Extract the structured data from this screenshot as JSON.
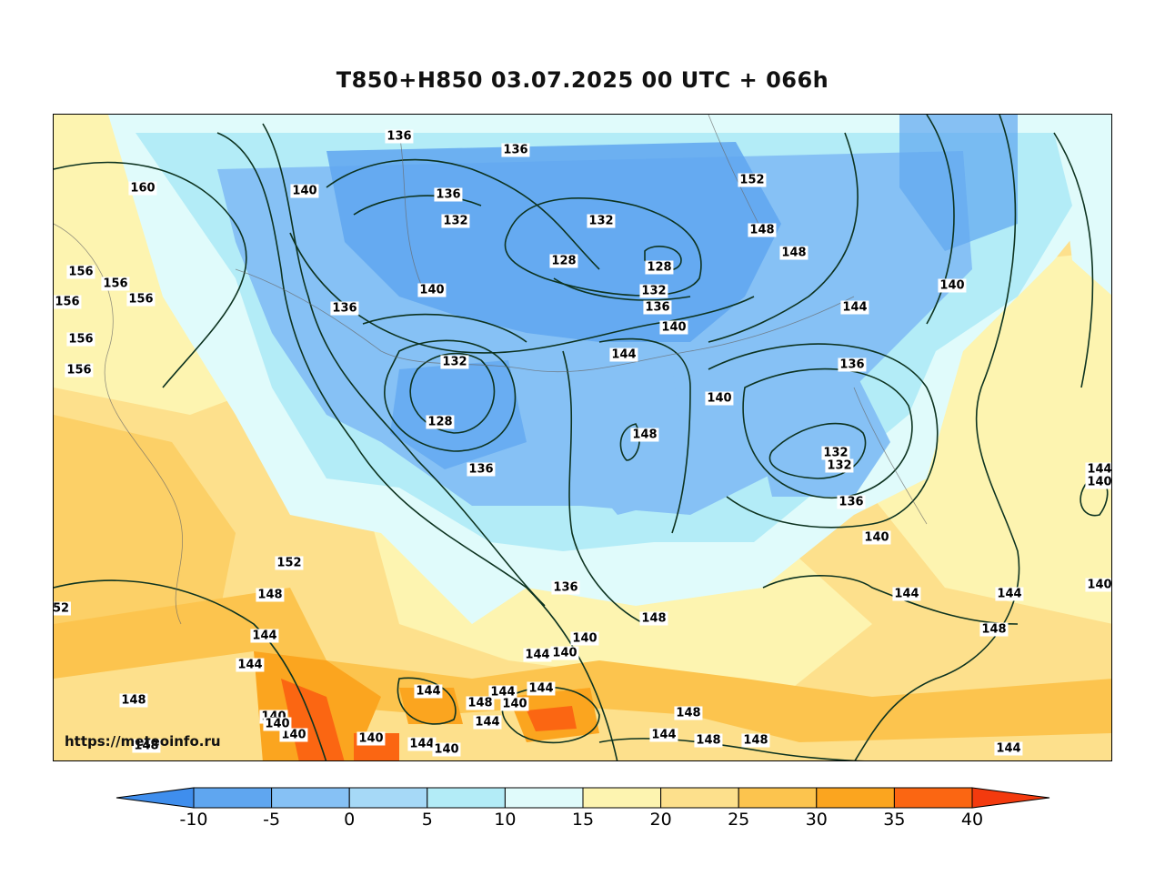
{
  "title": "T850+H850 03.07.2025 00 UTC + 066h",
  "source": "https://meteoinfo.ru",
  "colorbar": {
    "ticks": [
      "-10",
      "-5",
      "0",
      "5",
      "10",
      "15",
      "20",
      "25",
      "30",
      "35",
      "40"
    ],
    "colors": [
      "#3f8eed",
      "#5fa6f0",
      "#86c1f5",
      "#b3ecf7",
      "#e0fbfb",
      "#fdf4b0",
      "#fde08c",
      "#fcc44e",
      "#fba51f",
      "#fb6612",
      "#f33a0e"
    ]
  },
  "palette": {
    "cold_deep": "#5fa6f0",
    "cold": "#86c1f5",
    "cool": "#b3ecf7",
    "mild": "#e0fbfb",
    "warm": "#fdf4b0",
    "warmer": "#fde08c",
    "hot": "#fcc44e",
    "hotter": "#fba51f",
    "hottest": "#fb6612",
    "contour": "#0d3320"
  },
  "contour_labels": [
    "136",
    "136",
    "160",
    "140",
    "136",
    "132",
    "128",
    "128",
    "132",
    "132",
    "136",
    "140",
    "152",
    "148",
    "148",
    "156",
    "156",
    "156",
    "156",
    "156",
    "156",
    "140",
    "136",
    "132",
    "128",
    "136",
    "144",
    "148",
    "140",
    "136",
    "132",
    "132",
    "136",
    "140",
    "144",
    "140",
    "144",
    "140",
    "152",
    "148",
    "144",
    "144",
    "148",
    "52",
    "140",
    "136",
    "144",
    "140",
    "140",
    "144",
    "144",
    "148",
    "144",
    "140",
    "144",
    "148",
    "144",
    "148",
    "148",
    "144",
    "148",
    "148",
    "140",
    "140",
    "140",
    "144",
    "144",
    "148",
    "144",
    "140",
    "140"
  ]
}
